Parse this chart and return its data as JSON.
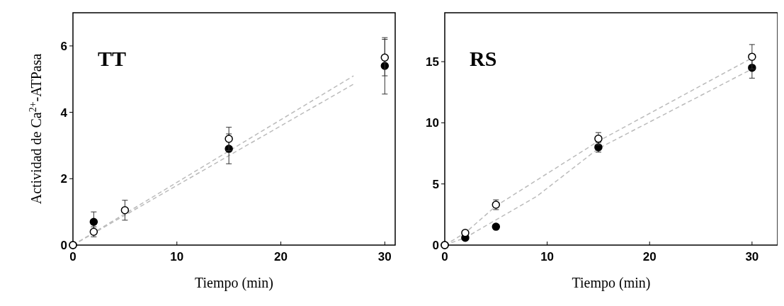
{
  "chart_data": [
    {
      "type": "scatter",
      "title": "TT",
      "xlabel": "Tiempo (min)",
      "ylabel": "Actividad de Ca$^{2+}$-ATPasa",
      "xlim": [
        0,
        31
      ],
      "ylim": [
        0,
        7
      ],
      "xticks": [
        0,
        10,
        20,
        30
      ],
      "yticks": [
        0,
        2,
        4,
        6
      ],
      "grid": false,
      "marker": "circle",
      "series": [
        {
          "type": "line",
          "color": "#bbbbbb",
          "line_style": "dashed",
          "marker": "none",
          "x": [
            0,
            27
          ],
          "values": [
            0,
            5.1
          ]
        },
        {
          "type": "line",
          "color": "#bbbbbb",
          "line_style": "dashed",
          "marker": "none",
          "x": [
            0,
            27
          ],
          "values": [
            0,
            4.85
          ]
        },
        {
          "color": "#000000",
          "x": [
            0,
            2,
            5,
            15,
            30
          ],
          "values": [
            0,
            0.7,
            null,
            2.9,
            5.4
          ],
          "errors": [
            null,
            0.3,
            null,
            0.45,
            0.85
          ]
        },
        {
          "color": "#ffffff",
          "x": [
            0,
            2,
            5,
            15,
            30
          ],
          "values": [
            0,
            0.4,
            1.05,
            3.2,
            5.65
          ],
          "errors": [
            null,
            0.15,
            0.3,
            0.35,
            0.55
          ]
        }
      ]
    },
    {
      "type": "scatter",
      "title": "RS",
      "xlabel": "Tiempo (min)",
      "xlim": [
        0,
        32.5
      ],
      "ylim": [
        0,
        19
      ],
      "xticks": [
        0,
        10,
        20,
        30
      ],
      "yticks": [
        0,
        5,
        10,
        15
      ],
      "grid": false,
      "marker": "circle",
      "series": [
        {
          "type": "line",
          "color": "#bbbbbb",
          "line_style": "dashed",
          "marker": "none",
          "x": [
            0,
            2,
            5,
            15,
            30
          ],
          "values": [
            0,
            1.0,
            3.2,
            8.5,
            15.3
          ]
        },
        {
          "type": "line",
          "color": "#bbbbbb",
          "line_style": "dashed",
          "marker": "none",
          "x": [
            0,
            2,
            9,
            15,
            30
          ],
          "values": [
            0,
            0.6,
            4.0,
            7.9,
            14.4
          ]
        },
        {
          "color": "#000000",
          "x": [
            0,
            2,
            5,
            15,
            30
          ],
          "values": [
            0,
            0.6,
            1.5,
            8.0,
            14.5
          ],
          "errors": [
            null,
            null,
            null,
            0.4,
            0.85
          ]
        },
        {
          "color": "#ffffff",
          "x": [
            0,
            2,
            5,
            15,
            30
          ],
          "values": [
            0,
            1.0,
            3.3,
            8.7,
            15.4
          ],
          "errors": [
            null,
            0.2,
            0.4,
            0.5,
            1.0
          ]
        }
      ]
    }
  ]
}
